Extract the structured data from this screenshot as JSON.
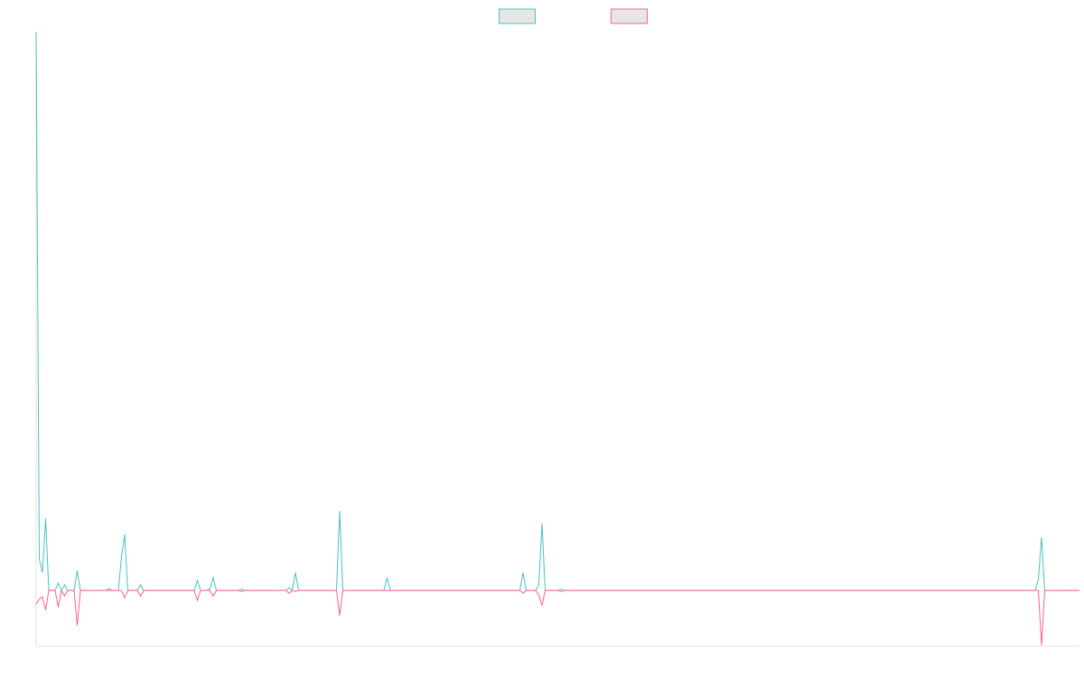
{
  "chart_data": {
    "type": "line",
    "ylim": [
      -1,
      10
    ],
    "legend": "top",
    "series": [
      {
        "color": "#4bc0c0",
        "values": [
          10,
          0.56,
          0.32,
          1.29,
          0,
          0,
          0,
          0.13,
          0,
          0.1,
          0,
          0,
          0,
          0.35,
          0,
          0,
          0,
          0,
          0,
          0,
          0,
          0,
          0,
          0.03,
          0,
          0,
          0,
          0.6,
          1,
          0,
          0,
          0,
          0,
          0.1,
          0,
          0,
          0,
          0,
          0,
          0,
          0,
          0,
          0,
          0,
          0,
          0,
          0,
          0,
          0,
          0,
          0,
          0.18,
          0,
          0,
          0,
          0.03,
          0.23,
          0,
          0,
          0,
          0,
          0,
          0,
          0,
          0,
          0.02,
          0,
          0,
          0,
          0,
          0,
          0,
          0,
          0,
          0,
          0,
          0,
          0,
          0,
          0,
          0.05,
          0,
          0.32,
          0,
          0,
          0,
          0,
          0,
          0,
          0,
          0,
          0,
          0,
          0,
          0,
          0,
          1.42,
          0,
          0,
          0,
          0,
          0,
          0,
          0,
          0,
          0,
          0,
          0,
          0,
          0,
          0,
          0.23,
          0,
          0,
          0,
          0,
          0,
          0,
          0,
          0,
          0,
          0,
          0,
          0,
          0,
          0,
          0,
          0,
          0,
          0,
          0,
          0,
          0,
          0,
          0,
          0,
          0,
          0,
          0,
          0,
          0,
          0,
          0,
          0,
          0,
          0,
          0,
          0,
          0,
          0,
          0,
          0,
          0,
          0,
          0.32,
          0,
          0,
          0,
          0,
          0.1,
          1.2,
          0,
          0,
          0,
          0,
          0,
          0.02,
          0,
          0,
          0,
          0,
          0,
          0,
          0,
          0,
          0,
          0,
          0,
          0,
          0,
          0,
          0,
          0,
          0,
          0,
          0,
          0,
          0,
          0,
          0,
          0,
          0,
          0,
          0,
          0,
          0,
          0,
          0,
          0,
          0,
          0,
          0,
          0,
          0,
          0,
          0,
          0,
          0,
          0,
          0,
          0,
          0,
          0,
          0,
          0,
          0,
          0,
          0,
          0,
          0,
          0,
          0,
          0,
          0,
          0,
          0,
          0,
          0,
          0,
          0,
          0,
          0,
          0,
          0,
          0,
          0,
          0,
          0,
          0,
          0,
          0,
          0,
          0,
          0,
          0,
          0,
          0,
          0,
          0,
          0,
          0,
          0,
          0,
          0,
          0,
          0,
          0,
          0,
          0,
          0,
          0,
          0,
          0,
          0,
          0,
          0,
          0,
          0,
          0,
          0,
          0,
          0,
          0,
          0,
          0,
          0,
          0,
          0,
          0,
          0,
          0,
          0,
          0,
          0,
          0,
          0,
          0,
          0,
          0,
          0,
          0,
          0,
          0,
          0,
          0,
          0,
          0,
          0,
          0,
          0,
          0,
          0,
          0,
          0,
          0,
          0,
          0,
          0,
          0,
          0,
          0,
          0,
          0,
          0,
          0,
          0,
          0,
          0.2,
          0.95,
          0,
          0,
          0,
          0,
          0,
          0,
          0,
          0,
          0,
          0,
          0,
          0
        ]
      },
      {
        "color": "#ff6384",
        "values": [
          -0.24,
          -0.16,
          -0.11,
          -0.35,
          0,
          0,
          0,
          -0.3,
          0,
          -0.1,
          0,
          0,
          0,
          -0.63,
          0,
          0,
          0,
          0,
          0,
          0,
          0,
          0,
          0,
          0,
          0,
          0,
          0,
          0,
          -0.13,
          0,
          0,
          0,
          0,
          -0.1,
          0,
          0,
          0,
          0,
          0,
          0,
          0,
          0,
          0,
          0,
          0,
          0,
          0,
          0,
          0,
          0,
          0,
          -0.18,
          0,
          0,
          0,
          0,
          -0.1,
          0,
          0,
          0,
          0,
          0,
          0,
          0,
          0,
          -0.02,
          0,
          0,
          0,
          0,
          0,
          0,
          0,
          0,
          0,
          0,
          0,
          0,
          0,
          0,
          -0.05,
          0,
          -0.02,
          0,
          0,
          0,
          0,
          0,
          0,
          0,
          0,
          0,
          0,
          0,
          0,
          0,
          -0.45,
          0,
          0,
          0,
          0,
          0,
          0,
          0,
          0,
          0,
          0,
          0,
          0,
          0,
          0,
          0,
          0,
          0,
          0,
          0,
          0,
          0,
          0,
          0,
          0,
          0,
          0,
          0,
          0,
          0,
          0,
          0,
          0,
          0,
          0,
          0,
          0,
          0,
          0,
          0,
          0,
          0,
          0,
          0,
          0,
          0,
          0,
          0,
          0,
          0,
          0,
          0,
          0,
          0,
          0,
          0,
          0,
          0,
          -0.05,
          0,
          0,
          0,
          0,
          -0.08,
          -0.27,
          0,
          0,
          0,
          0,
          0,
          -0.02,
          0,
          0,
          0,
          0,
          0,
          0,
          0,
          0,
          0,
          0,
          0,
          0,
          0,
          0,
          0,
          0,
          0,
          0,
          0,
          0,
          0,
          0,
          0,
          0,
          0,
          0,
          0,
          0,
          0,
          0,
          0,
          0,
          0,
          0,
          0,
          0,
          0,
          0,
          0,
          0,
          0,
          0,
          0,
          0,
          0,
          0,
          0,
          0,
          0,
          0,
          0,
          0,
          0,
          0,
          0,
          0,
          0,
          0,
          0,
          0,
          0,
          0,
          0,
          0,
          0,
          0,
          0,
          0,
          0,
          0,
          0,
          0,
          0,
          0,
          0,
          0,
          0,
          0,
          0,
          0,
          0,
          0,
          0,
          0,
          0,
          0,
          0,
          0,
          0,
          0,
          0,
          0,
          0,
          0,
          0,
          0,
          0,
          0,
          0,
          0,
          0,
          0,
          0,
          0,
          0,
          0,
          0,
          0,
          0,
          0,
          0,
          0,
          0,
          0,
          0,
          0,
          0,
          0,
          0,
          0,
          0,
          0,
          0,
          0,
          0,
          0,
          0,
          0,
          0,
          0,
          0,
          0,
          0,
          0,
          0,
          0,
          0,
          0,
          0,
          0,
          0,
          0,
          0,
          0,
          0,
          0,
          0,
          0,
          0,
          0,
          0,
          -0.98,
          0,
          0,
          0,
          0,
          0,
          0,
          0,
          0,
          0,
          0,
          0,
          0
        ]
      }
    ]
  }
}
